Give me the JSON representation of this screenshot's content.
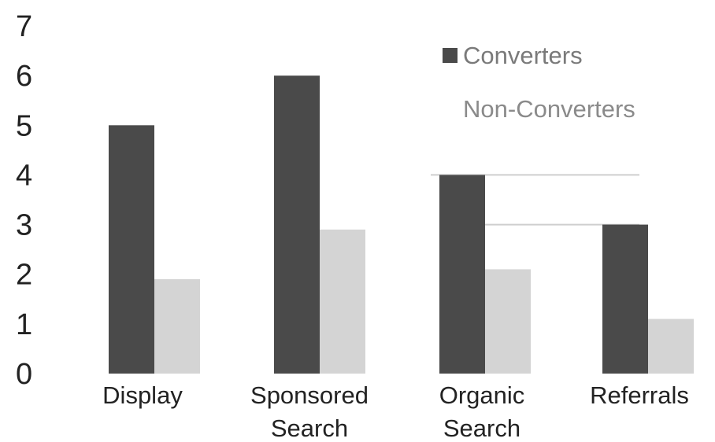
{
  "chart_data": {
    "type": "bar",
    "categories": [
      "Display",
      "Sponsored Search",
      "Organic Search",
      "Referrals"
    ],
    "category_lines": [
      [
        "Display"
      ],
      [
        "Sponsored",
        "Search"
      ],
      [
        "Organic",
        "Search"
      ],
      [
        "Referrals"
      ]
    ],
    "series": [
      {
        "name": "Converters",
        "values": [
          5,
          6,
          4,
          3
        ],
        "color": "#4a4a4a"
      },
      {
        "name": "Non-Converters",
        "values": [
          1.9,
          2.9,
          2.1,
          1.1
        ],
        "color": "#d4d4d4"
      }
    ],
    "ylim": [
      0,
      7
    ],
    "yticks": [
      "0",
      "1",
      "2",
      "3",
      "4",
      "5",
      "6",
      "7"
    ],
    "grid": false,
    "legend_position": "top-right",
    "legend_text_colors": [
      "#7a7a7a",
      "#8a8a8a"
    ],
    "title": "",
    "xlabel": "",
    "ylabel": ""
  }
}
